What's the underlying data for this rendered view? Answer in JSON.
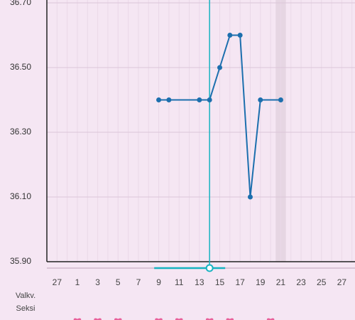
{
  "chart_data": {
    "type": "line",
    "xlim": [
      -2,
      28.3
    ],
    "xticks": [
      {
        "value": -1,
        "label": "27"
      },
      1,
      3,
      5,
      7,
      9,
      11,
      13,
      15,
      17,
      19,
      21,
      23,
      25,
      27
    ],
    "ylim": [
      35.9,
      36.7
    ],
    "yticks": [
      {
        "value": 35.9,
        "label": "35.90"
      },
      {
        "value": 36.1,
        "label": "36.10"
      },
      {
        "value": 36.3,
        "label": "36.30"
      },
      {
        "value": 36.5,
        "label": "36.50"
      },
      {
        "value": 36.7,
        "label": "36.70"
      }
    ],
    "grid": true,
    "cursor_day": 14,
    "highlight_day": 21,
    "series": [
      {
        "color": "#1c6fae",
        "x": [
          9,
          10,
          13,
          14,
          15,
          16,
          17,
          18,
          19,
          21
        ],
        "values": [
          36.4,
          36.4,
          36.4,
          36.4,
          36.5,
          36.6,
          36.6,
          36.1,
          36.4,
          36.4
        ]
      }
    ],
    "rows": [
      {
        "label": "Valkv.",
        "days": []
      },
      {
        "label": "Seksi",
        "color": "#e8609a",
        "days": [
          1,
          3,
          5,
          9,
          11,
          14,
          16,
          20
        ]
      }
    ]
  }
}
